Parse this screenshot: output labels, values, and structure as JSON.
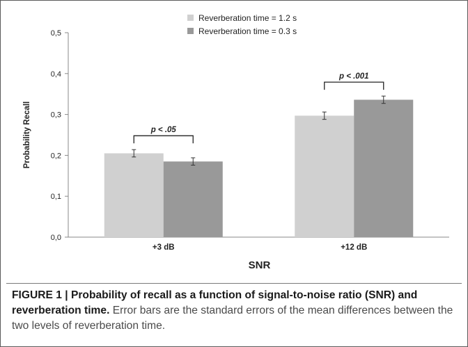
{
  "chart_data": {
    "type": "bar",
    "categories": [
      "+3 dB",
      "+12 dB"
    ],
    "series": [
      {
        "name": "Reverberation time = 1.2 s",
        "values": [
          0.205,
          0.297
        ],
        "errors": [
          0.009,
          0.009
        ],
        "color": "#d0d0d0"
      },
      {
        "name": "Reverberation time = 0.3 s",
        "values": [
          0.185,
          0.336
        ],
        "errors": [
          0.009,
          0.009
        ],
        "color": "#999999"
      }
    ],
    "xlabel": "SNR",
    "ylabel": "Probability Recall",
    "ylim": [
      0,
      0.5
    ],
    "yticks": [
      "0,0",
      "0,1",
      "0,2",
      "0,3",
      "0,4",
      "0,5"
    ],
    "annotations": [
      "p < .05",
      "p < .001"
    ],
    "grid": false,
    "legend_position": "top"
  },
  "caption": {
    "lead": "FIGURE 1 | Probability of recall as a function of signal-to-noise ratio (SNR) and reverberation time.",
    "rest": " Error bars are the standard errors of the mean differences between the two levels of reverberation time."
  }
}
